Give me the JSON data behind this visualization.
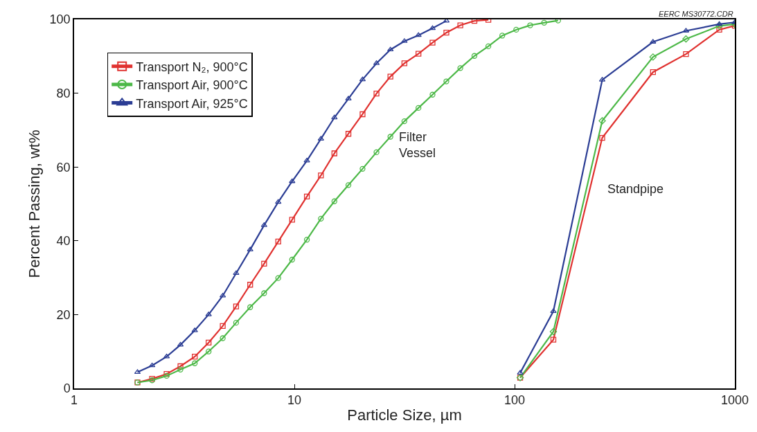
{
  "chart_data": {
    "type": "line",
    "xlabel": "Particle Size, µm",
    "ylabel": "Percent Passing, wt%",
    "log": "x",
    "xlim": [
      1,
      1000
    ],
    "xticks": [
      1,
      10,
      100,
      1000
    ],
    "ylim": [
      0,
      100
    ],
    "yticks": [
      0,
      20,
      40,
      60,
      80,
      100
    ],
    "legend": "top left",
    "annotations": [
      "Filter\nVessel",
      "Standpipe",
      "EERC MS30772.CDR"
    ],
    "series": [
      {
        "name": "Transport N₂, 900°C",
        "color": "#e0312f",
        "marker": "square",
        "x": [
          1.94,
          2.26,
          2.63,
          3.04,
          3.53,
          4.08,
          4.73,
          5.44,
          6.3,
          7.29,
          8.45,
          9.77,
          11.4,
          13.2,
          15.2,
          17.6,
          20.4,
          23.6,
          27.3,
          31.6,
          36.6,
          42.4,
          49.0,
          56.7,
          65.7,
          76.0
        ],
        "values": [
          1.6,
          2.6,
          3.9,
          6.0,
          8.6,
          12.4,
          16.9,
          22.2,
          28.1,
          33.8,
          39.8,
          45.7,
          52.0,
          57.7,
          63.7,
          69.0,
          74.3,
          79.9,
          84.5,
          88.1,
          90.7,
          93.7,
          96.4,
          98.4,
          99.6,
          99.9
        ]
      },
      {
        "name": "Transport Air, 900°C",
        "color": "#4cb847",
        "marker": "circle",
        "x": [
          1.94,
          2.26,
          2.63,
          3.04,
          3.53,
          4.08,
          4.73,
          5.44,
          6.3,
          7.29,
          8.45,
          9.77,
          11.4,
          13.2,
          15.2,
          17.6,
          20.4,
          23.6,
          27.3,
          31.6,
          36.6,
          42.4,
          49.0,
          56.7,
          65.7,
          76.0,
          87.9,
          101.7,
          117.7,
          136.2,
          157.6
        ],
        "values": [
          1.6,
          2.2,
          3.4,
          5.1,
          6.8,
          10.0,
          13.6,
          17.8,
          22.0,
          25.8,
          29.9,
          34.9,
          40.3,
          46.0,
          50.7,
          55.1,
          59.5,
          64.0,
          68.2,
          72.4,
          76.0,
          79.6,
          83.2,
          86.8,
          90.1,
          92.7,
          95.6,
          97.2,
          98.4,
          99.1,
          99.7
        ]
      },
      {
        "name": "Transport Air, 925°C",
        "color": "#2b3d94",
        "marker": "triangle",
        "x": [
          1.94,
          2.26,
          2.63,
          3.04,
          3.53,
          4.08,
          4.73,
          5.44,
          6.3,
          7.29,
          8.45,
          9.77,
          11.4,
          13.2,
          15.2,
          17.6,
          20.4,
          23.6,
          27.3,
          31.6,
          36.6,
          42.4,
          49.0
        ],
        "values": [
          4.4,
          6.2,
          8.6,
          11.8,
          15.7,
          20.0,
          25.1,
          31.2,
          37.6,
          44.2,
          50.5,
          56.1,
          61.7,
          67.6,
          73.4,
          78.5,
          83.7,
          88.1,
          91.8,
          94.1,
          95.7,
          97.6,
          99.6
        ]
      },
      {
        "color": "#e0312f",
        "marker": "square",
        "x": [
          106,
          150,
          250,
          425,
          600,
          850,
          1000
        ],
        "values": [
          2.9,
          13.2,
          67.9,
          85.7,
          90.6,
          97.2,
          98.3
        ]
      },
      {
        "color": "#4cb847",
        "marker": "diamond",
        "x": [
          106,
          150,
          250,
          425,
          600,
          850,
          1000
        ],
        "values": [
          2.9,
          15.4,
          72.5,
          89.8,
          94.7,
          98.2,
          98.7
        ]
      },
      {
        "color": "#2b3d94",
        "marker": "triangle",
        "x": [
          106,
          150,
          250,
          425,
          600,
          850,
          1000
        ],
        "values": [
          4.2,
          20.9,
          83.6,
          93.9,
          96.9,
          98.7,
          99.2
        ]
      }
    ]
  }
}
